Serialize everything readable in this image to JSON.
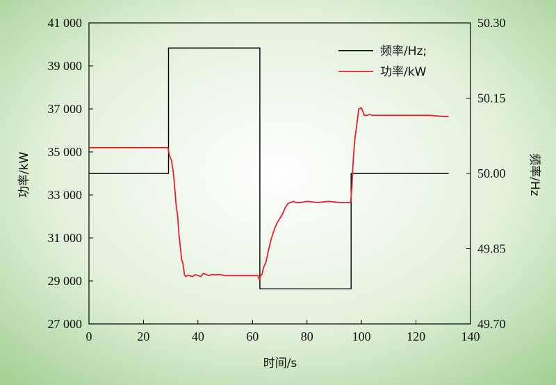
{
  "chart_data": {
    "type": "line",
    "xlabel": "时间/s",
    "ylabel_left": "功率/kW",
    "ylabel_right": "频率/Hz",
    "x_ticks": [
      "0",
      "20",
      "40",
      "60",
      "80",
      "100",
      "120",
      "140"
    ],
    "y_left_ticks": [
      "27 000",
      "29 000",
      "31 000",
      "33 000",
      "35 000",
      "37 000",
      "39 000",
      "41 000"
    ],
    "y_right_ticks": [
      "49.70",
      "49.85",
      "50.00",
      "50.15",
      "50.30"
    ],
    "xlim": [
      0,
      140
    ],
    "ylim_left": [
      27000,
      41000
    ],
    "ylim_right": [
      49.7,
      50.3
    ],
    "grid": false,
    "legend_position": "top-right",
    "colors": {
      "background_center": "#ffffff",
      "background_edge": "#9fcf8f",
      "frequency": "#000000",
      "power": "#e8202a"
    },
    "series": [
      {
        "name": "频率/Hz;",
        "axis": "right",
        "step": true,
        "x": [
          0,
          29.2,
          29.2,
          62.7,
          62.7,
          96.2,
          96.2,
          132
        ],
        "y": [
          50.0,
          50.0,
          50.25,
          50.25,
          49.77,
          49.77,
          50.0,
          50.0
        ]
      },
      {
        "name": "功率/kW",
        "axis": "left",
        "step": false,
        "x": [
          0,
          5,
          10,
          15,
          20,
          25,
          29,
          29.6,
          30.3,
          31,
          31.5,
          32,
          32.5,
          33,
          33.5,
          34,
          34.5,
          35,
          35.5,
          36,
          37,
          38,
          39,
          40,
          41,
          42,
          43,
          44,
          45,
          46,
          48,
          50,
          55,
          60,
          62,
          62.5,
          63,
          63.5,
          64,
          65,
          66,
          67,
          68,
          69,
          70,
          71,
          72,
          73,
          74,
          75,
          76,
          78,
          80,
          84,
          88,
          92,
          95,
          96,
          96.5,
          97,
          97.5,
          98,
          98.5,
          99,
          100,
          101,
          102,
          103,
          104,
          106,
          110,
          115,
          120,
          125,
          130,
          132
        ],
        "y": [
          35200,
          35200,
          35200,
          35200,
          35200,
          35200,
          35200,
          34800,
          34600,
          34000,
          33300,
          32500,
          32100,
          31200,
          30600,
          30000,
          29800,
          29300,
          29200,
          29250,
          29250,
          29200,
          29300,
          29250,
          29200,
          29350,
          29300,
          29250,
          29300,
          29280,
          29300,
          29250,
          29250,
          29250,
          29250,
          29050,
          29250,
          29300,
          29600,
          29900,
          30500,
          31000,
          31400,
          31700,
          31900,
          32100,
          32400,
          32600,
          32650,
          32700,
          32650,
          32650,
          32700,
          32650,
          32700,
          32650,
          32650,
          32650,
          33400,
          34700,
          35500,
          36000,
          36500,
          37000,
          37050,
          36700,
          36700,
          36750,
          36700,
          36700,
          36700,
          36700,
          36700,
          36700,
          36650,
          36650
        ]
      }
    ]
  }
}
